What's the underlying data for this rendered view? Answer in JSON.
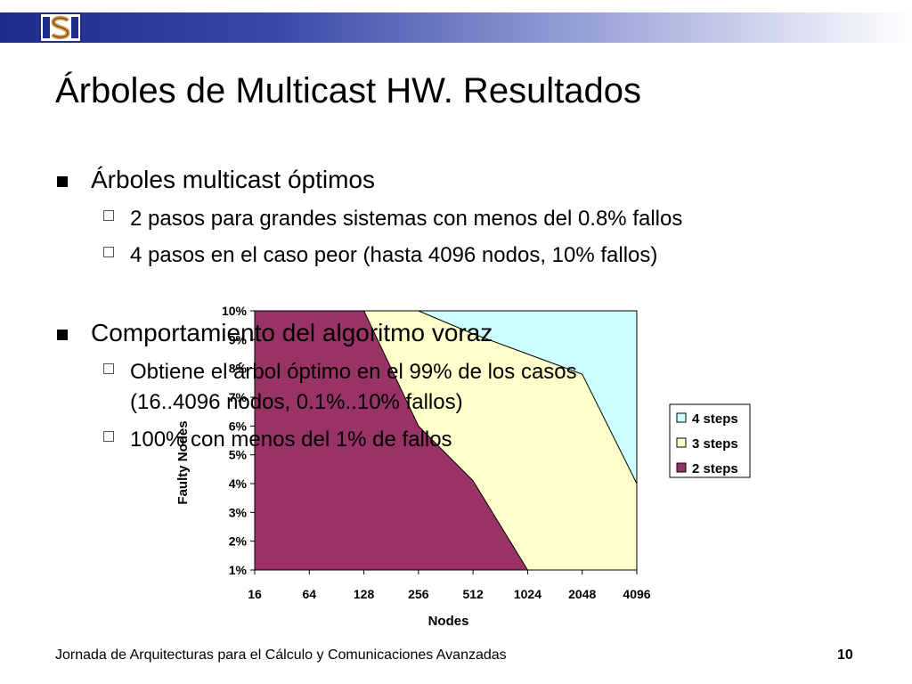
{
  "slide": {
    "title": "Árboles de Multicast HW. Resultados",
    "bullets": [
      {
        "text": "Árboles multicast óptimos",
        "sub": [
          "2 pasos para grandes sistemas con menos del 0.8% fallos",
          "4 pasos en el caso peor (hasta 4096 nodos, 10% fallos)"
        ]
      },
      {
        "text": "Comportamiento del algoritmo voraz",
        "sub": [
          "Obtiene el árbol óptimo en el 99% de los casos",
          "(16..4096 nodos, 0.1%..10% fallos)",
          "100% con menos del 1% de fallos"
        ]
      }
    ]
  },
  "chart_data": {
    "type": "area",
    "x": [
      "16",
      "64",
      "128",
      "256",
      "512",
      "1024",
      "2048",
      "4096"
    ],
    "xlabel": "Nodes",
    "ylabel": "Faulty Nodes",
    "y_ticks": [
      "1%",
      "2%",
      "3%",
      "4%",
      "5%",
      "6%",
      "7%",
      "8%",
      "9%",
      "10%"
    ],
    "ylim": [
      1,
      10
    ],
    "series": [
      {
        "name": "4 steps",
        "color": "#ccffff",
        "values": [
          10,
          10,
          10,
          10,
          10,
          10,
          10,
          10
        ]
      },
      {
        "name": "3 steps",
        "color": "#ffffcc",
        "values": [
          10,
          10,
          10,
          10,
          9.2,
          8.5,
          7.8,
          4.0
        ]
      },
      {
        "name": "2 steps",
        "color": "#993366",
        "values": [
          10,
          10,
          10,
          6.0,
          4.1,
          1.0,
          1.0,
          1.0
        ]
      }
    ],
    "legend": "right"
  },
  "footer": {
    "text": "Jornada de Arquitecturas para el Cálculo y Comunicaciones Avanzadas",
    "page": "10"
  },
  "colors": {
    "header_dark": "#1f2b8c",
    "four_steps": "#ccffff",
    "three_steps": "#ffffcc",
    "two_steps": "#993366"
  }
}
